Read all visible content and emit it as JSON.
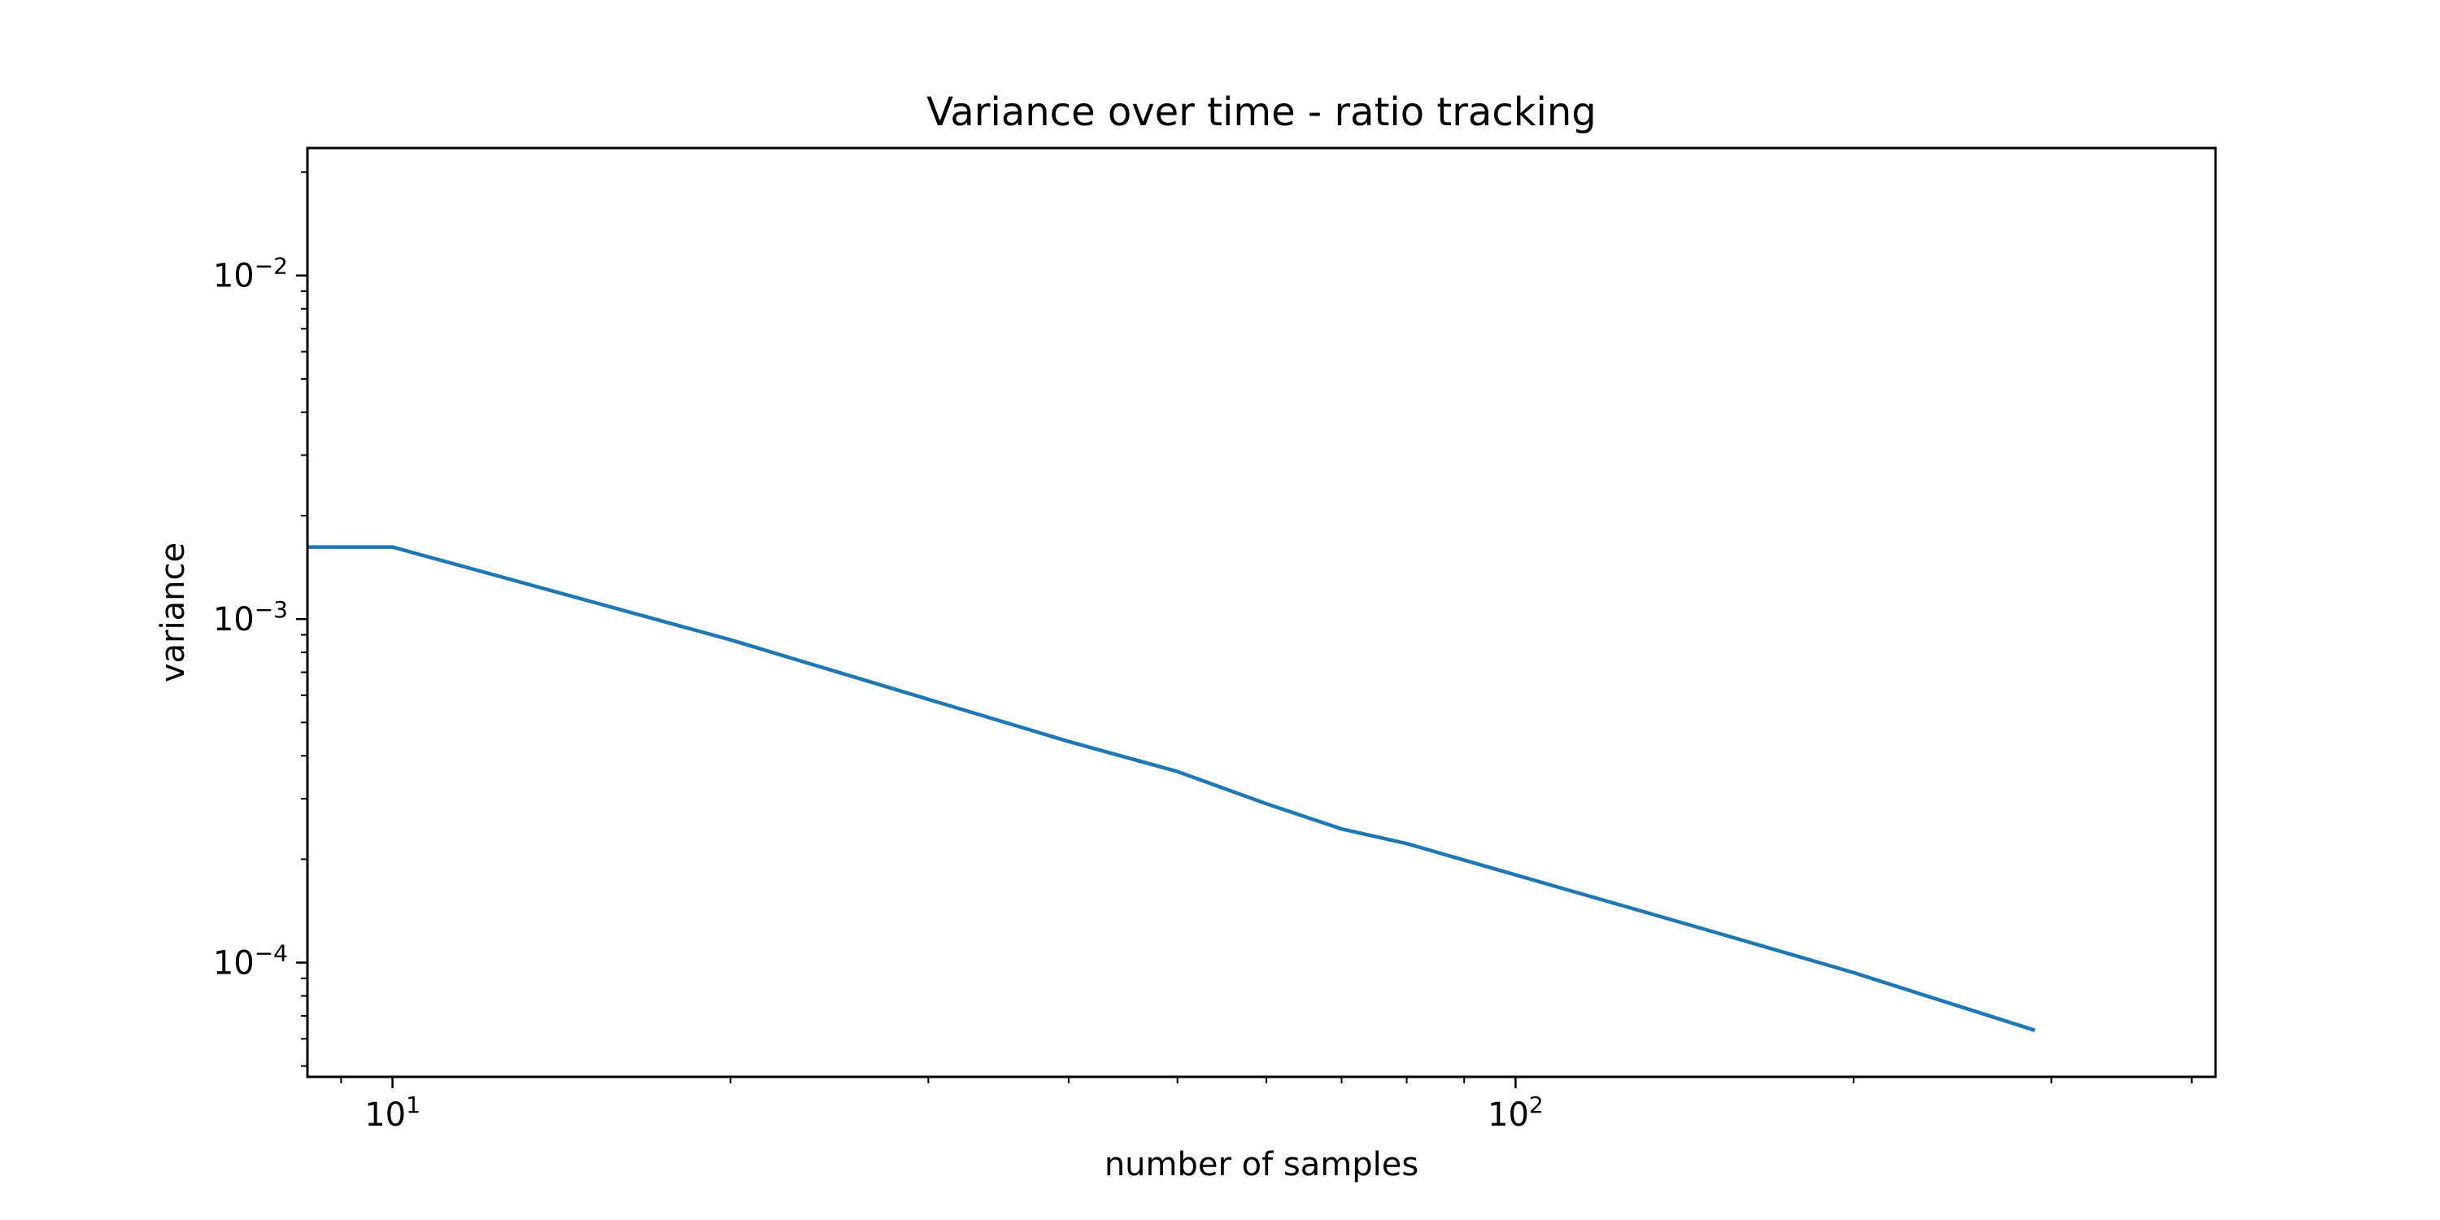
{
  "chart_data": {
    "type": "line",
    "title": "Variance over time - ratio tracking",
    "xlabel": "number of samples",
    "ylabel": "variance",
    "xscale": "log",
    "yscale": "log",
    "xlim": [
      8.4,
      420
    ],
    "ylim": [
      4.65e-05,
      0.0235
    ],
    "grid": false,
    "xticks": [
      {
        "value": 10,
        "base": "10",
        "exp": "1"
      },
      {
        "value": 100,
        "base": "10",
        "exp": "2"
      }
    ],
    "yticks": [
      {
        "value": 0.0001,
        "base": "10",
        "exp": "−4"
      },
      {
        "value": 0.001,
        "base": "10",
        "exp": "−3"
      },
      {
        "value": 0.01,
        "base": "10",
        "exp": "−2"
      }
    ],
    "series": [
      {
        "color": "#1f77b4",
        "x": [
          8.4,
          10,
          20,
          40,
          50,
          60,
          70,
          80,
          100,
          150,
          200,
          290
        ],
        "y": [
          0.00162,
          0.00162,
          0.00087,
          0.00044,
          0.00036,
          0.00029,
          0.000245,
          0.000222,
          0.00018,
          0.000123,
          9.35e-05,
          6.35e-05
        ]
      }
    ]
  }
}
